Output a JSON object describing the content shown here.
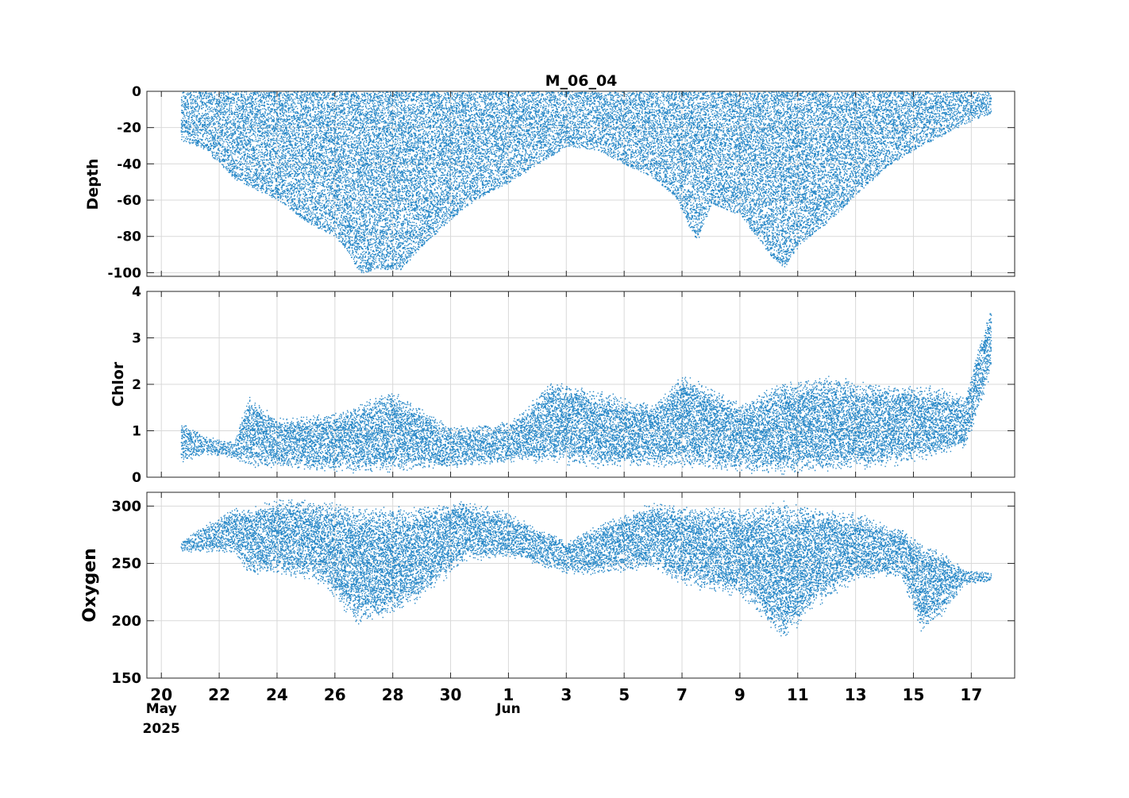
{
  "chart_data": {
    "type": "scatter",
    "title": "M_06_04",
    "marker_color": "#0072BD",
    "grid": true,
    "x": {
      "ticks": [
        {
          "date": "2025-05-20",
          "label": "20",
          "sublabel": "May",
          "sublabel2": "2025"
        },
        {
          "date": "2025-05-22",
          "label": "22"
        },
        {
          "date": "2025-05-24",
          "label": "24"
        },
        {
          "date": "2025-05-26",
          "label": "26"
        },
        {
          "date": "2025-05-28",
          "label": "28"
        },
        {
          "date": "2025-05-30",
          "label": "30"
        },
        {
          "date": "2025-06-01",
          "label": "1",
          "sublabel": "Jun"
        },
        {
          "date": "2025-06-03",
          "label": "3"
        },
        {
          "date": "2025-06-05",
          "label": "5"
        },
        {
          "date": "2025-06-07",
          "label": "7"
        },
        {
          "date": "2025-06-09",
          "label": "9"
        },
        {
          "date": "2025-06-11",
          "label": "11"
        },
        {
          "date": "2025-06-13",
          "label": "13"
        },
        {
          "date": "2025-06-15",
          "label": "15"
        },
        {
          "date": "2025-06-17",
          "label": "17"
        }
      ],
      "range": [
        "2025-05-19T12:00",
        "2025-06-18T12:00"
      ],
      "data_range": [
        "2025-05-20T16:00",
        "2025-06-17T16:00"
      ]
    },
    "panels": [
      {
        "ylabel": "Depth",
        "ylim": [
          -102,
          0
        ],
        "yticks": [
          0,
          -20,
          -40,
          -60,
          -80,
          -100
        ],
        "envelope": [
          {
            "date": "2025-05-20T16:00",
            "min": -27,
            "max": 0
          },
          {
            "date": "2025-05-21T12:00",
            "min": -32,
            "max": 0
          },
          {
            "date": "2025-05-22T12:00",
            "min": -48,
            "max": 0
          },
          {
            "date": "2025-05-23T00:00",
            "min": -52,
            "max": 0
          },
          {
            "date": "2025-05-24T00:00",
            "min": -60,
            "max": 0
          },
          {
            "date": "2025-05-25T00:00",
            "min": -72,
            "max": 0
          },
          {
            "date": "2025-05-26T00:00",
            "min": -80,
            "max": 0
          },
          {
            "date": "2025-05-26T12:00",
            "min": -90,
            "max": 0
          },
          {
            "date": "2025-05-26T20:00",
            "min": -100,
            "max": 0
          },
          {
            "date": "2025-05-27T12:00",
            "min": -98,
            "max": 0
          },
          {
            "date": "2025-05-28T06:00",
            "min": -98,
            "max": 0
          },
          {
            "date": "2025-05-29T00:00",
            "min": -85,
            "max": 0
          },
          {
            "date": "2025-05-30T00:00",
            "min": -70,
            "max": 0
          },
          {
            "date": "2025-05-31T00:00",
            "min": -58,
            "max": 0
          },
          {
            "date": "2025-06-01T00:00",
            "min": -50,
            "max": 0
          },
          {
            "date": "2025-06-02T00:00",
            "min": -40,
            "max": 0
          },
          {
            "date": "2025-06-03T00:00",
            "min": -30,
            "max": 0
          },
          {
            "date": "2025-06-04T00:00",
            "min": -32,
            "max": 0
          },
          {
            "date": "2025-06-05T00:00",
            "min": -40,
            "max": 0
          },
          {
            "date": "2025-06-06T00:00",
            "min": -48,
            "max": 0
          },
          {
            "date": "2025-06-06T18:00",
            "min": -58,
            "max": 0
          },
          {
            "date": "2025-06-07T06:00",
            "min": -75,
            "max": 0
          },
          {
            "date": "2025-06-07T12:00",
            "min": -82,
            "max": 0
          },
          {
            "date": "2025-06-08T00:00",
            "min": -62,
            "max": 0
          },
          {
            "date": "2025-06-09T00:00",
            "min": -68,
            "max": 0
          },
          {
            "date": "2025-06-10T00:00",
            "min": -90,
            "max": 0
          },
          {
            "date": "2025-06-10T12:00",
            "min": -97,
            "max": 0
          },
          {
            "date": "2025-06-11T00:00",
            "min": -85,
            "max": 0
          },
          {
            "date": "2025-06-12T00:00",
            "min": -72,
            "max": 0
          },
          {
            "date": "2025-06-13T00:00",
            "min": -57,
            "max": 0
          },
          {
            "date": "2025-06-14T00:00",
            "min": -42,
            "max": 0
          },
          {
            "date": "2025-06-15T00:00",
            "min": -32,
            "max": 0
          },
          {
            "date": "2025-06-16T00:00",
            "min": -24,
            "max": 0
          },
          {
            "date": "2025-06-17T00:00",
            "min": -16,
            "max": 0
          },
          {
            "date": "2025-06-17T16:00",
            "min": -12,
            "max": 0
          }
        ]
      },
      {
        "ylabel": "Chlor",
        "ylim": [
          0,
          4
        ],
        "yticks": [
          0,
          1,
          2,
          3,
          4
        ],
        "envelope": [
          {
            "date": "2025-05-20T16:00",
            "min": 0.3,
            "max": 1.2
          },
          {
            "date": "2025-05-21T12:00",
            "min": 0.5,
            "max": 0.9
          },
          {
            "date": "2025-05-22T12:00",
            "min": 0.4,
            "max": 0.8
          },
          {
            "date": "2025-05-23T00:00",
            "min": 0.2,
            "max": 1.8
          },
          {
            "date": "2025-05-24T00:00",
            "min": 0.2,
            "max": 1.3
          },
          {
            "date": "2025-05-26T00:00",
            "min": 0.1,
            "max": 1.4
          },
          {
            "date": "2025-05-28T00:00",
            "min": 0.1,
            "max": 1.9
          },
          {
            "date": "2025-05-30T00:00",
            "min": 0.2,
            "max": 1.1
          },
          {
            "date": "2025-06-01T00:00",
            "min": 0.3,
            "max": 1.2
          },
          {
            "date": "2025-06-02T12:00",
            "min": 0.3,
            "max": 2.1
          },
          {
            "date": "2025-06-04T00:00",
            "min": 0.2,
            "max": 1.9
          },
          {
            "date": "2025-06-06T00:00",
            "min": 0.2,
            "max": 1.6
          },
          {
            "date": "2025-06-07T00:00",
            "min": 0.2,
            "max": 2.3
          },
          {
            "date": "2025-06-09T00:00",
            "min": 0.1,
            "max": 1.6
          },
          {
            "date": "2025-06-10T12:00",
            "min": 0.05,
            "max": 2.1
          },
          {
            "date": "2025-06-12T00:00",
            "min": 0.1,
            "max": 2.2
          },
          {
            "date": "2025-06-14T00:00",
            "min": 0.2,
            "max": 2.0
          },
          {
            "date": "2025-06-15T12:00",
            "min": 0.4,
            "max": 2.0
          },
          {
            "date": "2025-06-16T18:00",
            "min": 0.6,
            "max": 1.8
          },
          {
            "date": "2025-06-17T12:00",
            "min": 1.9,
            "max": 3.4
          },
          {
            "date": "2025-06-17T16:00",
            "min": 2.4,
            "max": 3.7
          }
        ]
      },
      {
        "ylabel": "Oxygen",
        "ylim": [
          150,
          312
        ],
        "yticks": [
          150,
          200,
          250,
          300
        ],
        "envelope": [
          {
            "date": "2025-05-20T16:00",
            "min": 260,
            "max": 270
          },
          {
            "date": "2025-05-21T12:00",
            "min": 260,
            "max": 285
          },
          {
            "date": "2025-05-22T12:00",
            "min": 258,
            "max": 300
          },
          {
            "date": "2025-05-23T00:00",
            "min": 240,
            "max": 300
          },
          {
            "date": "2025-05-24T00:00",
            "min": 240,
            "max": 308
          },
          {
            "date": "2025-05-25T12:00",
            "min": 232,
            "max": 305
          },
          {
            "date": "2025-05-26T18:00",
            "min": 195,
            "max": 302
          },
          {
            "date": "2025-05-27T12:00",
            "min": 200,
            "max": 300
          },
          {
            "date": "2025-05-28T12:00",
            "min": 210,
            "max": 300
          },
          {
            "date": "2025-05-29T12:00",
            "min": 230,
            "max": 302
          },
          {
            "date": "2025-05-30T12:00",
            "min": 252,
            "max": 306
          },
          {
            "date": "2025-06-01T00:00",
            "min": 255,
            "max": 295
          },
          {
            "date": "2025-06-03T00:00",
            "min": 240,
            "max": 270
          },
          {
            "date": "2025-06-04T00:00",
            "min": 240,
            "max": 285
          },
          {
            "date": "2025-06-06T00:00",
            "min": 245,
            "max": 305
          },
          {
            "date": "2025-06-07T00:00",
            "min": 230,
            "max": 300
          },
          {
            "date": "2025-06-09T00:00",
            "min": 220,
            "max": 300
          },
          {
            "date": "2025-06-10T12:00",
            "min": 180,
            "max": 305
          },
          {
            "date": "2025-06-11T12:00",
            "min": 210,
            "max": 300
          },
          {
            "date": "2025-06-13T00:00",
            "min": 235,
            "max": 295
          },
          {
            "date": "2025-06-14T12:00",
            "min": 238,
            "max": 282
          },
          {
            "date": "2025-06-15T06:00",
            "min": 190,
            "max": 270
          },
          {
            "date": "2025-06-16T00:00",
            "min": 205,
            "max": 262
          },
          {
            "date": "2025-06-16T18:00",
            "min": 232,
            "max": 245
          },
          {
            "date": "2025-06-17T16:00",
            "min": 234,
            "max": 243
          }
        ]
      }
    ]
  }
}
